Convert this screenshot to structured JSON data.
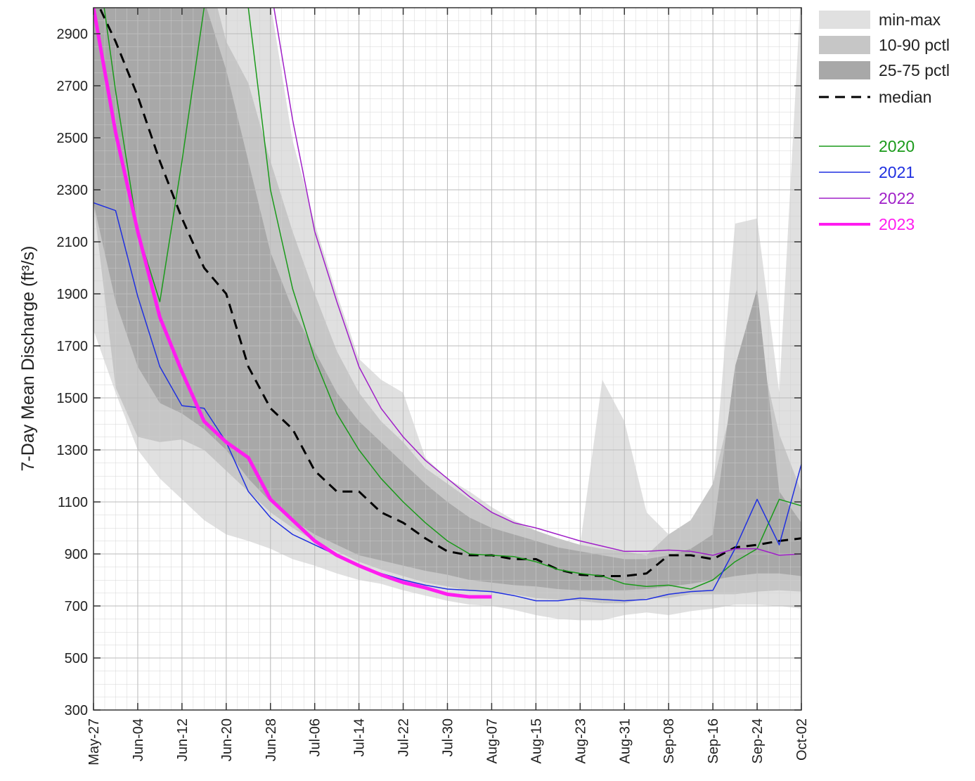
{
  "chart_data": {
    "type": "line",
    "y_label": "7-Day Mean Discharge (ft³/s)",
    "x": [
      0,
      4,
      8,
      12,
      16,
      20,
      24,
      28,
      32,
      36,
      40,
      44,
      48,
      52,
      56,
      60,
      64,
      68,
      72,
      76,
      80,
      84,
      88,
      92,
      96,
      100,
      104,
      108,
      112,
      116,
      120,
      124,
      128
    ],
    "xlim": [
      0,
      128
    ],
    "xticks": [
      {
        "value": 0,
        "label": "May-27"
      },
      {
        "value": 8,
        "label": "Jun-04"
      },
      {
        "value": 16,
        "label": "Jun-12"
      },
      {
        "value": 24,
        "label": "Jun-20"
      },
      {
        "value": 32,
        "label": "Jun-28"
      },
      {
        "value": 40,
        "label": "Jul-06"
      },
      {
        "value": 48,
        "label": "Jul-14"
      },
      {
        "value": 56,
        "label": "Jul-22"
      },
      {
        "value": 64,
        "label": "Jul-30"
      },
      {
        "value": 72,
        "label": "Aug-07"
      },
      {
        "value": 80,
        "label": "Aug-15"
      },
      {
        "value": 88,
        "label": "Aug-23"
      },
      {
        "value": 96,
        "label": "Aug-31"
      },
      {
        "value": 104,
        "label": "Sep-08"
      },
      {
        "value": 112,
        "label": "Sep-16"
      },
      {
        "value": 120,
        "label": "Sep-24"
      },
      {
        "value": 128,
        "label": "Oct-02"
      }
    ],
    "ylim": [
      300,
      3000
    ],
    "yticks": [
      300,
      500,
      700,
      900,
      1100,
      1300,
      1500,
      1700,
      1900,
      2100,
      2300,
      2500,
      2700,
      2900
    ],
    "grid": true,
    "bands": [
      {
        "name": "min-max",
        "color": "#e0e0e0",
        "upper": [
          3200,
          3200,
          3200,
          3200,
          3200,
          3200,
          3200,
          3200,
          3020,
          2490,
          2170,
          1900,
          1650,
          1570,
          1520,
          1270,
          1190,
          1140,
          1080,
          1030,
          990,
          950,
          935,
          1570,
          1410,
          1060,
          975,
          1000,
          1140,
          2170,
          2190,
          1520,
          3100
        ],
        "lower": [
          1760,
          1520,
          1300,
          1190,
          1110,
          1030,
          975,
          950,
          920,
          880,
          855,
          825,
          800,
          785,
          760,
          740,
          720,
          705,
          700,
          685,
          665,
          650,
          645,
          645,
          665,
          675,
          665,
          680,
          690,
          705,
          705,
          700,
          690
        ]
      },
      {
        "name": "10-90 pctl",
        "color": "#c6c6c6",
        "upper": [
          3200,
          3200,
          3200,
          3200,
          3200,
          3200,
          2870,
          2710,
          2410,
          2140,
          1900,
          1680,
          1520,
          1410,
          1330,
          1230,
          1170,
          1110,
          1060,
          1020,
          990,
          960,
          935,
          920,
          910,
          895,
          975,
          1030,
          1170,
          1520,
          1730,
          1360,
          1140
        ],
        "lower": [
          2250,
          1540,
          1350,
          1330,
          1340,
          1300,
          1220,
          1140,
          1060,
          1000,
          950,
          910,
          870,
          840,
          815,
          790,
          775,
          760,
          755,
          745,
          730,
          725,
          720,
          710,
          710,
          730,
          730,
          745,
          745,
          745,
          755,
          760,
          755
        ]
      },
      {
        "name": "25-75 pctl",
        "color": "#a8a8a8",
        "upper": [
          3200,
          3200,
          3200,
          3200,
          3200,
          3030,
          2760,
          2410,
          2060,
          1840,
          1680,
          1520,
          1410,
          1330,
          1250,
          1170,
          1100,
          1040,
          1000,
          975,
          950,
          925,
          910,
          895,
          880,
          880,
          895,
          920,
          975,
          1620,
          1920,
          1140,
          1020
        ],
        "lower": [
          2250,
          1870,
          1620,
          1480,
          1440,
          1380,
          1300,
          1190,
          1100,
          1030,
          975,
          935,
          895,
          875,
          855,
          835,
          820,
          800,
          790,
          780,
          775,
          765,
          760,
          760,
          760,
          765,
          775,
          785,
          800,
          815,
          825,
          825,
          815
        ]
      }
    ],
    "series": [
      {
        "name": "median",
        "color": "#000000",
        "dashed": true,
        "width": 3,
        "values": [
          3050,
          2870,
          2660,
          2410,
          2190,
          2000,
          1900,
          1620,
          1460,
          1380,
          1220,
          1140,
          1140,
          1060,
          1020,
          960,
          910,
          895,
          895,
          880,
          880,
          840,
          820,
          815,
          815,
          825,
          895,
          895,
          880,
          925,
          935,
          950,
          960
        ]
      },
      {
        "name": "2020",
        "color": "#1a9a1a",
        "width": 1.5,
        "values": [
          3300,
          2680,
          2140,
          1870,
          2410,
          3000,
          3300,
          3000,
          2300,
          1920,
          1650,
          1440,
          1300,
          1190,
          1100,
          1020,
          950,
          900,
          895,
          890,
          870,
          840,
          825,
          815,
          785,
          775,
          780,
          765,
          800,
          870,
          920,
          1110,
          1085
        ]
      },
      {
        "name": "2021",
        "color": "#1f2fe0",
        "width": 1.5,
        "values": [
          2250,
          2220,
          1890,
          1620,
          1470,
          1460,
          1330,
          1140,
          1040,
          975,
          935,
          895,
          855,
          825,
          800,
          780,
          765,
          760,
          755,
          740,
          720,
          720,
          730,
          725,
          720,
          725,
          745,
          755,
          760,
          920,
          1110,
          935,
          1245
        ]
      },
      {
        "name": "2022",
        "color": "#a020c8",
        "width": 1.5,
        "values": [
          null,
          null,
          null,
          null,
          null,
          null,
          null,
          null,
          3080,
          2570,
          2140,
          1870,
          1620,
          1460,
          1350,
          1260,
          1190,
          1120,
          1060,
          1020,
          1000,
          975,
          950,
          930,
          910,
          910,
          915,
          910,
          895,
          920,
          920,
          895,
          900
        ]
      },
      {
        "name": "2023",
        "color": "#ff1cf0",
        "width": 5,
        "values": [
          3000,
          2520,
          2140,
          1810,
          1600,
          1410,
          1330,
          1270,
          1110,
          1030,
          950,
          895,
          855,
          820,
          790,
          770,
          745,
          735,
          735,
          null,
          null,
          null,
          null,
          null,
          null,
          null,
          null,
          null,
          null,
          null,
          null,
          null,
          null
        ]
      }
    ]
  }
}
